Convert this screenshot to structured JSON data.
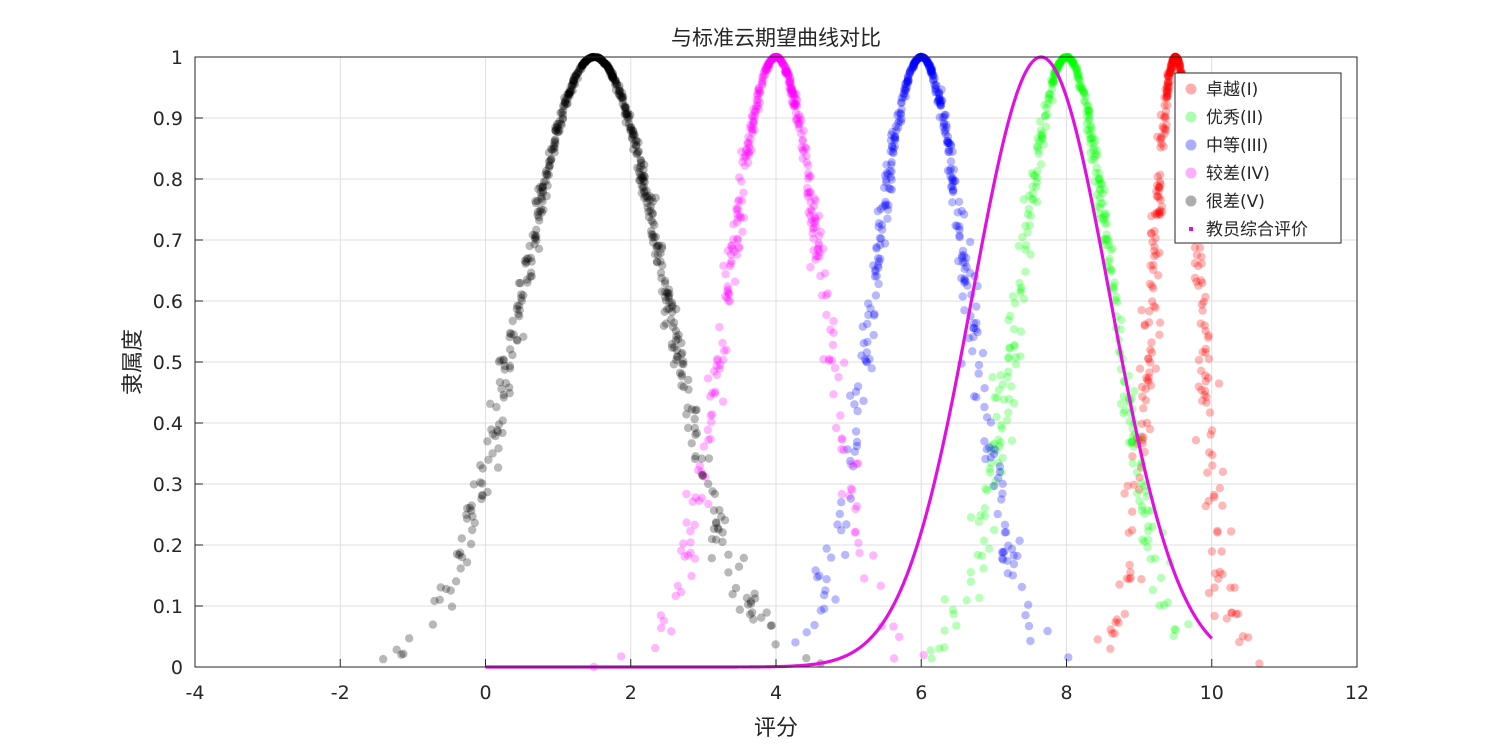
{
  "chart_data": {
    "type": "scatter",
    "title": "与标准云期望曲线对比",
    "xlabel": "评分",
    "ylabel": "隶属度",
    "xlim": [
      -4,
      12
    ],
    "ylim": [
      0,
      1
    ],
    "xticks": [
      -4,
      -2,
      0,
      2,
      4,
      6,
      8,
      10,
      12
    ],
    "yticks": [
      0,
      0.1,
      0.2,
      0.3,
      0.4,
      0.5,
      0.6,
      0.7,
      0.8,
      0.9,
      1
    ],
    "xtick_labels": [
      "-4",
      "-2",
      "0",
      "2",
      "4",
      "6",
      "8",
      "10",
      "12"
    ],
    "ytick_labels": [
      "0",
      "0.1",
      "0.2",
      "0.3",
      "0.4",
      "0.5",
      "0.6",
      "0.7",
      "0.8",
      "0.9",
      "1"
    ],
    "grid": true,
    "legend_position": "top-right",
    "series": [
      {
        "name": "卓越(I)",
        "kind": "cloud",
        "Ex": 9.5,
        "En": 0.33,
        "He": 0.05,
        "n": 400,
        "color": "#ff0000"
      },
      {
        "name": "优秀(II)",
        "kind": "cloud",
        "Ex": 8.0,
        "En": 0.66,
        "He": 0.05,
        "n": 400,
        "color": "#00ff00"
      },
      {
        "name": "中等(III)",
        "kind": "cloud",
        "Ex": 6.0,
        "En": 0.66,
        "He": 0.05,
        "n": 400,
        "color": "#0000ff"
      },
      {
        "name": "较差(IV)",
        "kind": "cloud",
        "Ex": 4.0,
        "En": 0.66,
        "He": 0.05,
        "n": 400,
        "color": "#ff00ff"
      },
      {
        "name": "很差(V)",
        "kind": "cloud",
        "Ex": 1.5,
        "En": 1.0,
        "He": 0.05,
        "n": 600,
        "color": "#000000"
      },
      {
        "name": "教员综合评价",
        "kind": "expectation_curve",
        "Ex": 7.65,
        "En": 0.95,
        "x_range": [
          0,
          10
        ],
        "color": "#e010e0"
      }
    ]
  }
}
